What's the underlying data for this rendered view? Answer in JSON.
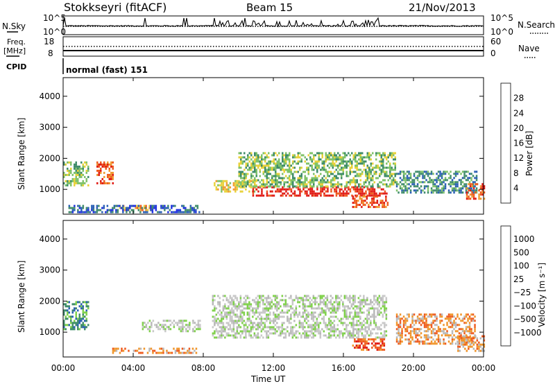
{
  "header": {
    "station": "Stokkseyri (fitACF)",
    "beam": "Beam 15",
    "date": "21/Nov/2013"
  },
  "left_labels": {
    "nsky": "N.Sky",
    "freq": "Freq.",
    "freq_unit": "[MHz]",
    "cpid": "CPID"
  },
  "right_labels": {
    "nsearch": "N.Search",
    "nave": "Nave"
  },
  "cpid_text": "normal (fast) 151",
  "colors": {
    "power_scale": [
      "#1f2fe0",
      "#2a5fb4",
      "#3f8c6a",
      "#7fc26a",
      "#e8d23a",
      "#f09a30",
      "#ee5a1e",
      "#e01a14"
    ],
    "velocity_scale": [
      "#e01a14",
      "#ee5a1e",
      "#f0952a",
      "#b8b8b8",
      "#c8c8c8",
      "#7fd14a",
      "#3f8c6a",
      "#2a5fb4",
      "#1f2fe0"
    ]
  },
  "chart_data": [
    {
      "type": "line",
      "panel": "noise",
      "left_ticks": [
        "10^5",
        "10^0"
      ],
      "right_ticks": [
        "10^5",
        "10^0"
      ]
    },
    {
      "type": "line",
      "panel": "frequency",
      "left_ticks": [
        "18",
        "8"
      ],
      "right_ticks": [
        "60",
        "0"
      ]
    },
    {
      "type": "heatmap",
      "panel": "power",
      "ylabel": "Slant Range [km]",
      "yticks": [
        "4000",
        "3000",
        "2000",
        "1000"
      ],
      "y_tick_values": [
        4000,
        3000,
        2000,
        1000
      ],
      "ylim": [
        200,
        4600
      ],
      "xlim": [
        0,
        24
      ],
      "colorbar_label": "Power [dB]",
      "colorbar_ticks": [
        "28",
        "24",
        "20",
        "16",
        "12",
        "8",
        "4"
      ],
      "regions": [
        {
          "t0": 0.0,
          "t1": 1.4,
          "r0": 1100,
          "r1": 1900,
          "level": 3
        },
        {
          "t0": 1.9,
          "t1": 2.8,
          "r0": 1200,
          "r1": 1900,
          "level": 6
        },
        {
          "t0": 3.0,
          "t1": 5.0,
          "r0": 350,
          "r1": 500,
          "level": 5
        },
        {
          "t0": 8.6,
          "t1": 11.0,
          "r0": 950,
          "r1": 1300,
          "level": 4
        },
        {
          "t0": 10.8,
          "t1": 18.5,
          "r0": 800,
          "r1": 1100,
          "level": 7
        },
        {
          "t0": 10.0,
          "t1": 19.0,
          "r0": 1100,
          "r1": 2200,
          "level": 3
        },
        {
          "t0": 16.5,
          "t1": 18.5,
          "r0": 450,
          "r1": 800,
          "level": 6
        },
        {
          "t0": 19.0,
          "t1": 23.6,
          "r0": 900,
          "r1": 1600,
          "level": 2
        },
        {
          "t0": 23.0,
          "t1": 24.0,
          "r0": 700,
          "r1": 1200,
          "level": 6
        },
        {
          "t0": 0.3,
          "t1": 7.8,
          "r0": 250,
          "r1": 500,
          "level": 1
        }
      ]
    },
    {
      "type": "heatmap",
      "panel": "velocity",
      "ylabel": "Slant Range [km]",
      "yticks": [
        "4000",
        "3000",
        "2000",
        "1000"
      ],
      "y_tick_values": [
        4000,
        3000,
        2000,
        1000
      ],
      "ylim": [
        200,
        4600
      ],
      "xlim": [
        0,
        24
      ],
      "colorbar_label": "Velocity [m s⁻¹]",
      "colorbar_ticks": [
        "1000",
        "500",
        "100",
        "25",
        "−25",
        "−100",
        "−500",
        "−1000"
      ],
      "regions": [
        {
          "t0": 0.0,
          "t1": 1.4,
          "r0": 1100,
          "r1": 2000,
          "level": 6
        },
        {
          "t0": 2.8,
          "t1": 7.6,
          "r0": 350,
          "r1": 500,
          "level": 2
        },
        {
          "t0": 4.5,
          "t1": 7.8,
          "r0": 1000,
          "r1": 1400,
          "level": 4
        },
        {
          "t0": 8.5,
          "t1": 18.5,
          "r0": 800,
          "r1": 2200,
          "level": 4
        },
        {
          "t0": 16.5,
          "t1": 18.3,
          "r0": 450,
          "r1": 800,
          "level": 1
        },
        {
          "t0": 19.0,
          "t1": 23.5,
          "r0": 600,
          "r1": 1600,
          "level": 2
        },
        {
          "t0": 22.5,
          "t1": 24.0,
          "r0": 400,
          "r1": 900,
          "level": 2
        }
      ]
    }
  ],
  "x_axis": {
    "label": "Time UT",
    "ticks": [
      "00:00",
      "04:00",
      "08:00",
      "12:00",
      "16:00",
      "20:00",
      "00:00"
    ],
    "tick_hours": [
      0,
      4,
      8,
      12,
      16,
      20,
      24
    ]
  }
}
